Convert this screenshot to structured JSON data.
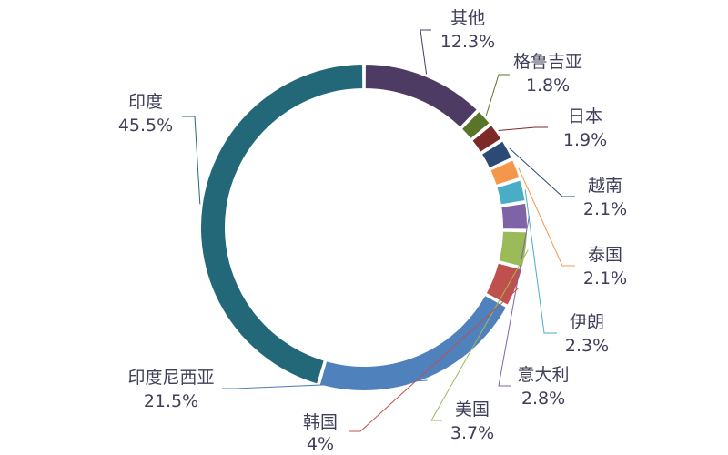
{
  "chart_data": {
    "type": "pie",
    "variant": "donut",
    "title": "",
    "legend": "none",
    "unit": "%",
    "slices": [
      {
        "label": "其他",
        "value": 12.3,
        "display": "12.3%",
        "color": "#4e3b63"
      },
      {
        "label": "格鲁吉亚",
        "value": 1.8,
        "display": "1.8%",
        "color": "#5a7429"
      },
      {
        "label": "日本",
        "value": 1.9,
        "display": "1.9%",
        "color": "#7b2a27"
      },
      {
        "label": "越南",
        "value": 2.1,
        "display": "2.1%",
        "color": "#2c4a76"
      },
      {
        "label": "泰国",
        "value": 2.1,
        "display": "2.1%",
        "color": "#f4974a"
      },
      {
        "label": "伊朗",
        "value": 2.3,
        "display": "2.3%",
        "color": "#4aadc6"
      },
      {
        "label": "意大利",
        "value": 2.8,
        "display": "2.8%",
        "color": "#7e63a6"
      },
      {
        "label": "美国",
        "value": 3.7,
        "display": "3.7%",
        "color": "#9bbb59"
      },
      {
        "label": "韩国",
        "value": 4,
        "display": "4%",
        "color": "#c0504d"
      },
      {
        "label": "印度尼西亚",
        "value": 21.5,
        "display": "21.5%",
        "color": "#4f81bd"
      },
      {
        "label": "印度",
        "value": 45.5,
        "display": "45.5%",
        "color": "#236878"
      }
    ]
  }
}
